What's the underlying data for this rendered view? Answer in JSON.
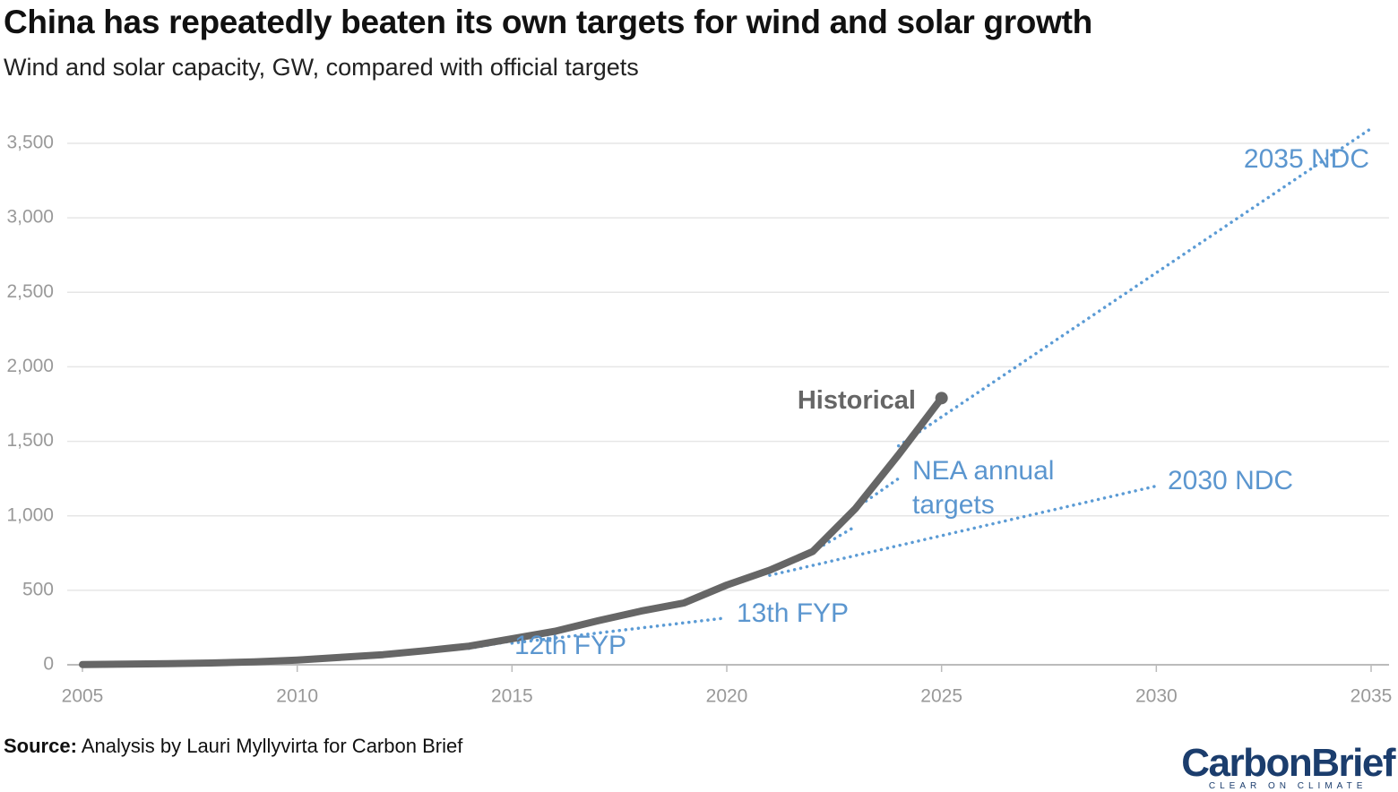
{
  "chart_data": {
    "type": "line",
    "title": "China has repeatedly beaten its own targets for wind and solar growth",
    "subtitle": "Wind and solar capacity, GW, compared with official targets",
    "xlim": [
      2005,
      2035
    ],
    "xticks": [
      2005,
      2010,
      2015,
      2020,
      2025,
      2030,
      2035
    ],
    "ylim": [
      0,
      3500
    ],
    "yticks": [
      0,
      500,
      {
        "value": 1000,
        "label": "1,000"
      },
      {
        "value": 1500,
        "label": "1,500"
      },
      {
        "value": 2000,
        "label": "2,000"
      },
      {
        "value": 2500,
        "label": "2,500"
      },
      {
        "value": 3000,
        "label": "3,000"
      },
      {
        "value": 3500,
        "label": "3,500"
      }
    ],
    "grid": true,
    "series": [
      {
        "name": "Historical",
        "color": "#666666",
        "style": "solid",
        "x": [
          2005,
          2006,
          2007,
          2008,
          2009,
          2010,
          2011,
          2012,
          2013,
          2014,
          2015,
          2016,
          2017,
          2018,
          2019,
          2020,
          2021,
          2022,
          2023,
          2024,
          2025
        ],
        "values": [
          2,
          4,
          7,
          12,
          20,
          32,
          50,
          68,
          95,
          125,
          175,
          225,
          295,
          360,
          415,
          535,
          635,
          760,
          1050,
          1410,
          1790
        ]
      },
      {
        "name": "12th FYP",
        "color": "#5b9bd5",
        "style": "dotted",
        "x": [
          2014,
          2015
        ],
        "values": [
          110,
          160
        ]
      },
      {
        "name": "13th FYP",
        "color": "#5b9bd5",
        "style": "dotted",
        "x": [
          2015,
          2020
        ],
        "values": [
          145,
          315
        ]
      },
      {
        "name": "NEA annual targets",
        "color": "#5b9bd5",
        "style": "dotted",
        "x": [
          2022,
          2023,
          null,
          2023,
          2024
        ],
        "values": [
          760,
          930,
          null,
          1050,
          1250
        ]
      },
      {
        "name": "2030 NDC",
        "color": "#5b9bd5",
        "style": "dotted",
        "x": [
          2021,
          2030
        ],
        "values": [
          600,
          1200
        ]
      },
      {
        "name": "2035 NDC",
        "color": "#5b9bd5",
        "style": "dotted",
        "x": [
          2024,
          2035
        ],
        "values": [
          1470,
          3600
        ]
      }
    ]
  },
  "footer": {
    "source_label": "Source:",
    "source": "Analysis by Lauri Myllyvirta for Carbon Brief",
    "logo": "CarbonBrief",
    "logo_tagline": "CLEAR ON CLIMATE"
  }
}
